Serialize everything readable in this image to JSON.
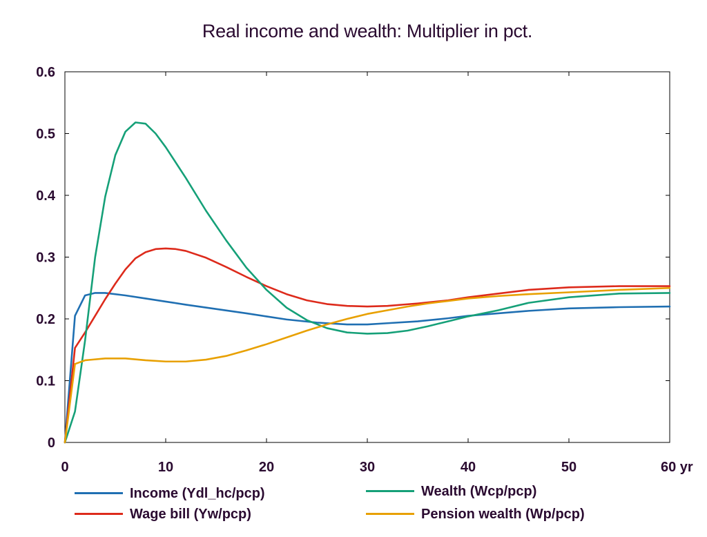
{
  "chart_data": {
    "type": "line",
    "title": "Real income and wealth: Multiplier in pct.",
    "xlabel": "",
    "ylabel": "",
    "xlim": [
      0,
      60
    ],
    "ylim": [
      0,
      0.6
    ],
    "x_ticks": [
      0,
      10,
      20,
      30,
      40,
      50,
      60
    ],
    "x_tick_labels": [
      "0",
      "10",
      "20",
      "30",
      "40",
      "50",
      "60 yr"
    ],
    "y_ticks": [
      0,
      0.1,
      0.2,
      0.3,
      0.4,
      0.5,
      0.6
    ],
    "y_tick_labels": [
      "0",
      "0.1",
      "0.2",
      "0.3",
      "0.4",
      "0.5",
      "0.6"
    ],
    "grid": false,
    "legend_position": "bottom",
    "series": [
      {
        "name": "Income (Ydl_hc/pcp)",
        "color": "#1f6fb2",
        "points": [
          [
            0,
            0
          ],
          [
            1,
            0.205
          ],
          [
            2,
            0.238
          ],
          [
            3,
            0.242
          ],
          [
            4,
            0.242
          ],
          [
            6,
            0.238
          ],
          [
            8,
            0.233
          ],
          [
            10,
            0.228
          ],
          [
            12,
            0.223
          ],
          [
            15,
            0.216
          ],
          [
            18,
            0.209
          ],
          [
            20,
            0.204
          ],
          [
            22,
            0.199
          ],
          [
            25,
            0.194
          ],
          [
            28,
            0.191
          ],
          [
            30,
            0.191
          ],
          [
            32,
            0.193
          ],
          [
            35,
            0.196
          ],
          [
            38,
            0.201
          ],
          [
            40,
            0.205
          ],
          [
            43,
            0.209
          ],
          [
            46,
            0.213
          ],
          [
            50,
            0.217
          ],
          [
            55,
            0.219
          ],
          [
            60,
            0.22
          ]
        ]
      },
      {
        "name": "Wage bill (Yw/pcp)",
        "color": "#dd2a1b",
        "points": [
          [
            0,
            0
          ],
          [
            1,
            0.153
          ],
          [
            2,
            0.178
          ],
          [
            3,
            0.205
          ],
          [
            4,
            0.232
          ],
          [
            5,
            0.257
          ],
          [
            6,
            0.28
          ],
          [
            7,
            0.298
          ],
          [
            8,
            0.308
          ],
          [
            9,
            0.313
          ],
          [
            10,
            0.314
          ],
          [
            11,
            0.313
          ],
          [
            12,
            0.31
          ],
          [
            14,
            0.299
          ],
          [
            16,
            0.284
          ],
          [
            18,
            0.268
          ],
          [
            20,
            0.253
          ],
          [
            22,
            0.24
          ],
          [
            24,
            0.23
          ],
          [
            26,
            0.224
          ],
          [
            28,
            0.221
          ],
          [
            30,
            0.22
          ],
          [
            32,
            0.221
          ],
          [
            35,
            0.225
          ],
          [
            38,
            0.23
          ],
          [
            40,
            0.235
          ],
          [
            43,
            0.241
          ],
          [
            46,
            0.247
          ],
          [
            50,
            0.251
          ],
          [
            55,
            0.253
          ],
          [
            60,
            0.253
          ]
        ]
      },
      {
        "name": "Wealth (Wcp/pcp)",
        "color": "#15a078",
        "points": [
          [
            0,
            0
          ],
          [
            1,
            0.05
          ],
          [
            2,
            0.165
          ],
          [
            3,
            0.3
          ],
          [
            4,
            0.398
          ],
          [
            5,
            0.465
          ],
          [
            6,
            0.503
          ],
          [
            7,
            0.518
          ],
          [
            8,
            0.516
          ],
          [
            9,
            0.5
          ],
          [
            10,
            0.478
          ],
          [
            12,
            0.428
          ],
          [
            14,
            0.375
          ],
          [
            16,
            0.327
          ],
          [
            18,
            0.283
          ],
          [
            20,
            0.247
          ],
          [
            22,
            0.218
          ],
          [
            24,
            0.198
          ],
          [
            26,
            0.185
          ],
          [
            28,
            0.178
          ],
          [
            30,
            0.176
          ],
          [
            32,
            0.177
          ],
          [
            34,
            0.181
          ],
          [
            36,
            0.188
          ],
          [
            38,
            0.196
          ],
          [
            40,
            0.204
          ],
          [
            43,
            0.214
          ],
          [
            46,
            0.226
          ],
          [
            50,
            0.235
          ],
          [
            55,
            0.241
          ],
          [
            60,
            0.242
          ]
        ]
      },
      {
        "name": "Pension wealth (Wp/pcp)",
        "color": "#e8a000",
        "points": [
          [
            0,
            0
          ],
          [
            1,
            0.127
          ],
          [
            2,
            0.133
          ],
          [
            4,
            0.136
          ],
          [
            6,
            0.136
          ],
          [
            8,
            0.133
          ],
          [
            10,
            0.131
          ],
          [
            12,
            0.131
          ],
          [
            14,
            0.134
          ],
          [
            16,
            0.14
          ],
          [
            18,
            0.149
          ],
          [
            20,
            0.159
          ],
          [
            22,
            0.17
          ],
          [
            24,
            0.181
          ],
          [
            26,
            0.191
          ],
          [
            28,
            0.2
          ],
          [
            30,
            0.208
          ],
          [
            32,
            0.214
          ],
          [
            34,
            0.22
          ],
          [
            36,
            0.225
          ],
          [
            38,
            0.229
          ],
          [
            40,
            0.233
          ],
          [
            43,
            0.237
          ],
          [
            46,
            0.24
          ],
          [
            50,
            0.243
          ],
          [
            55,
            0.247
          ],
          [
            60,
            0.25
          ]
        ]
      }
    ]
  },
  "legend": [
    {
      "label": "Income (Ydl_hc/pcp)",
      "color": "#1f6fb2"
    },
    {
      "label": "Wealth (Wcp/pcp)",
      "color": "#15a078"
    },
    {
      "label": "Wage bill (Yw/pcp)",
      "color": "#dd2a1b"
    },
    {
      "label": "Pension wealth (Wp/pcp)",
      "color": "#e8a000"
    }
  ]
}
